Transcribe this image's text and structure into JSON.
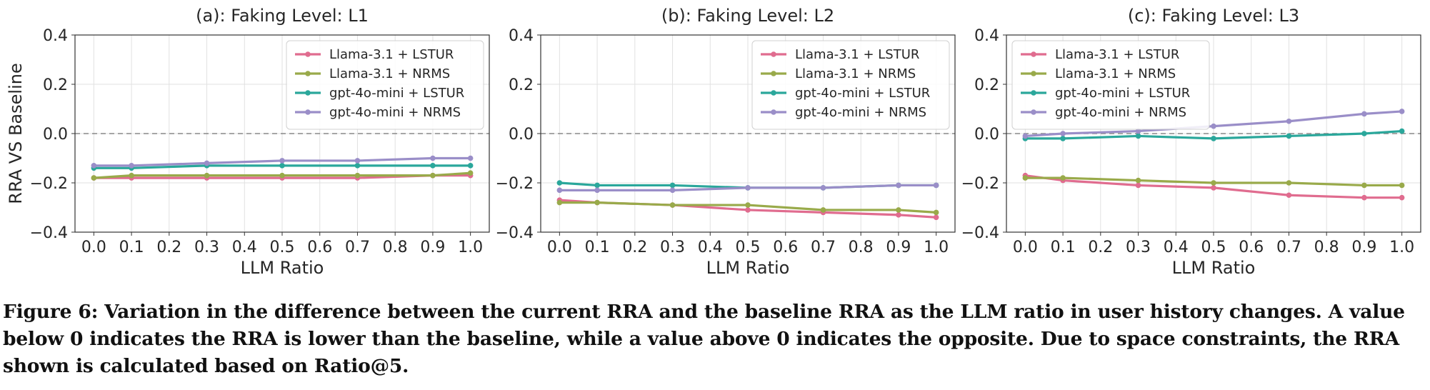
{
  "caption": "Figure 6: Variation in the difference between the current RRA and the baseline RRA as the LLM ratio in user history changes. A value below 0 indicates the RRA is lower than the baseline, while a value above 0 indicates the opposite. Due to space constraints, the RRA shown is calculated based on Ratio@5.",
  "colors": {
    "Llama-3.1 + LSTUR": "#e06c8f",
    "Llama-3.1 + NRMS": "#99aa4a",
    "gpt-4o-mini + LSTUR": "#2aa79b",
    "gpt-4o-mini + NRMS": "#9a8ec8"
  },
  "chart_data": [
    {
      "type": "line",
      "title": "(a): Faking Level: L1",
      "xlabel": "LLM Ratio",
      "ylabel": "RRA VS Baseline",
      "x": [
        0.0,
        0.1,
        0.3,
        0.5,
        0.7,
        0.9,
        1.0
      ],
      "xticks": [
        "0.0",
        "0.1",
        "0.2",
        "0.3",
        "0.4",
        "0.5",
        "0.6",
        "0.7",
        "0.8",
        "0.9",
        "1.0"
      ],
      "yticks": [
        "0.4",
        "0.2",
        "0.0",
        "−0.2",
        "−0.4"
      ],
      "ylim": [
        -0.4,
        0.4
      ],
      "baseline": 0.0,
      "grid": true,
      "legend": "top-right",
      "series": [
        {
          "name": "Llama-3.1 + LSTUR",
          "values": [
            -0.18,
            -0.18,
            -0.18,
            -0.18,
            -0.18,
            -0.17,
            -0.17
          ]
        },
        {
          "name": "Llama-3.1 + NRMS",
          "values": [
            -0.18,
            -0.17,
            -0.17,
            -0.17,
            -0.17,
            -0.17,
            -0.16
          ]
        },
        {
          "name": "gpt-4o-mini + LSTUR",
          "values": [
            -0.14,
            -0.14,
            -0.13,
            -0.13,
            -0.13,
            -0.13,
            -0.13
          ]
        },
        {
          "name": "gpt-4o-mini + NRMS",
          "values": [
            -0.13,
            -0.13,
            -0.12,
            -0.11,
            -0.11,
            -0.1,
            -0.1
          ]
        }
      ]
    },
    {
      "type": "line",
      "title": "(b): Faking Level: L2",
      "xlabel": "LLM Ratio",
      "ylabel": "",
      "x": [
        0.0,
        0.1,
        0.3,
        0.5,
        0.7,
        0.9,
        1.0
      ],
      "xticks": [
        "0.0",
        "0.1",
        "0.2",
        "0.3",
        "0.4",
        "0.5",
        "0.6",
        "0.7",
        "0.8",
        "0.9",
        "1.0"
      ],
      "yticks": [
        "0.4",
        "0.2",
        "0.0",
        "−0.2",
        "−0.4"
      ],
      "ylim": [
        -0.4,
        0.4
      ],
      "baseline": 0.0,
      "grid": true,
      "legend": "top-right",
      "series": [
        {
          "name": "Llama-3.1 + LSTUR",
          "values": [
            -0.27,
            -0.28,
            -0.29,
            -0.31,
            -0.32,
            -0.33,
            -0.34
          ]
        },
        {
          "name": "Llama-3.1 + NRMS",
          "values": [
            -0.28,
            -0.28,
            -0.29,
            -0.29,
            -0.31,
            -0.31,
            -0.32
          ]
        },
        {
          "name": "gpt-4o-mini + LSTUR",
          "values": [
            -0.2,
            -0.21,
            -0.21,
            -0.22,
            -0.22,
            -0.21,
            -0.21
          ]
        },
        {
          "name": "gpt-4o-mini + NRMS",
          "values": [
            -0.23,
            -0.23,
            -0.23,
            -0.22,
            -0.22,
            -0.21,
            -0.21
          ]
        }
      ]
    },
    {
      "type": "line",
      "title": "(c): Faking Level: L3",
      "xlabel": "LLM Ratio",
      "ylabel": "",
      "x": [
        0.0,
        0.1,
        0.3,
        0.5,
        0.7,
        0.9,
        1.0
      ],
      "xticks": [
        "0.0",
        "0.1",
        "0.2",
        "0.3",
        "0.4",
        "0.5",
        "0.6",
        "0.7",
        "0.8",
        "0.9",
        "1.0"
      ],
      "yticks": [
        "0.4",
        "0.2",
        "0.0",
        "−0.2",
        "−0.4"
      ],
      "ylim": [
        -0.4,
        0.4
      ],
      "baseline": 0.0,
      "grid": true,
      "legend": "top-left",
      "series": [
        {
          "name": "Llama-3.1 + LSTUR",
          "values": [
            -0.17,
            -0.19,
            -0.21,
            -0.22,
            -0.25,
            -0.26,
            -0.26
          ]
        },
        {
          "name": "Llama-3.1 + NRMS",
          "values": [
            -0.18,
            -0.18,
            -0.19,
            -0.2,
            -0.2,
            -0.21,
            -0.21
          ]
        },
        {
          "name": "gpt-4o-mini + LSTUR",
          "values": [
            -0.02,
            -0.02,
            -0.01,
            -0.02,
            -0.01,
            0.0,
            0.01
          ]
        },
        {
          "name": "gpt-4o-mini + NRMS",
          "values": [
            -0.01,
            0.0,
            0.01,
            0.03,
            0.05,
            0.08,
            0.09
          ]
        }
      ]
    }
  ]
}
